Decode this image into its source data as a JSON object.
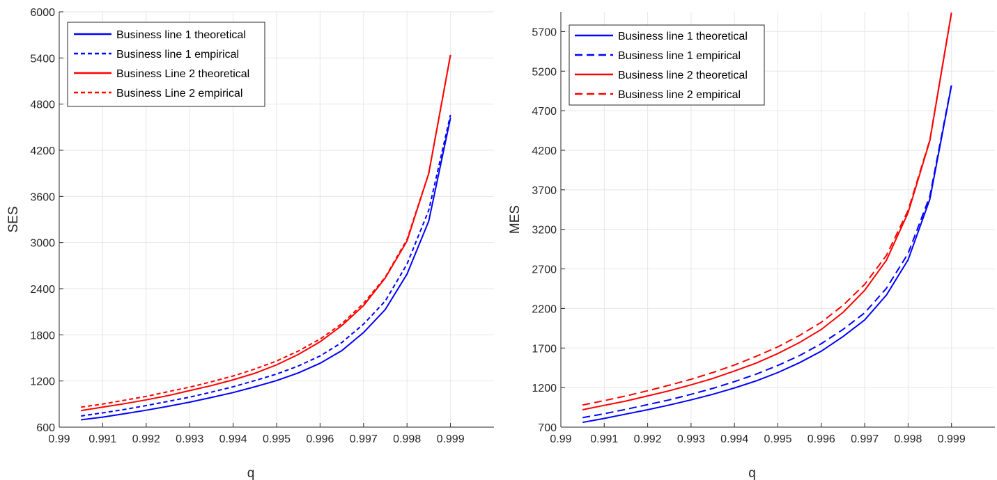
{
  "chart_data": [
    {
      "type": "line",
      "xlabel": "q",
      "ylabel": "SES",
      "xlim": [
        0.99,
        1.0
      ],
      "ylim": [
        600,
        6000
      ],
      "xticks": [
        0.99,
        0.991,
        0.992,
        0.993,
        0.994,
        0.995,
        0.996,
        0.997,
        0.998,
        0.999
      ],
      "xtick_labels": [
        "0.99",
        "0.991",
        "0.992",
        "0.993",
        "0.994",
        "0.995",
        "0.996",
        "0.997",
        "0.998",
        "0.999"
      ],
      "yticks": [
        600,
        1200,
        1800,
        2400,
        3000,
        3600,
        4200,
        4800,
        5400,
        6000
      ],
      "ytick_labels": [
        "600",
        "1200",
        "1800",
        "2400",
        "3000",
        "3600",
        "4200",
        "4800",
        "5400",
        "6000"
      ],
      "grid": true,
      "legend_position": "top-left",
      "x": [
        0.9905,
        0.991,
        0.9915,
        0.992,
        0.9925,
        0.993,
        0.9935,
        0.994,
        0.9945,
        0.995,
        0.9955,
        0.996,
        0.9965,
        0.997,
        0.9975,
        0.998,
        0.9985,
        0.999
      ],
      "series": [
        {
          "name": "Business line 1 theoretical",
          "color": "#0000ff",
          "style": "solid",
          "values": [
            695,
            730,
            775,
            820,
            870,
            925,
            985,
            1050,
            1125,
            1205,
            1305,
            1430,
            1595,
            1830,
            2130,
            2590,
            3280,
            4620
          ]
        },
        {
          "name": "Business line 1 empirical",
          "color": "#0000ff",
          "style": "dashed",
          "values": [
            745,
            785,
            830,
            880,
            935,
            990,
            1055,
            1125,
            1205,
            1290,
            1395,
            1525,
            1700,
            1940,
            2240,
            2720,
            3420,
            4660
          ]
        },
        {
          "name": "Business Line 2 theoretical",
          "color": "#ff0000",
          "style": "solid",
          "values": [
            815,
            860,
            905,
            955,
            1010,
            1075,
            1140,
            1215,
            1300,
            1410,
            1545,
            1710,
            1920,
            2180,
            2540,
            3020,
            3900,
            5440
          ]
        },
        {
          "name": "Business Line 2 empirical",
          "color": "#ff0000",
          "style": "dashed",
          "values": [
            860,
            900,
            950,
            1000,
            1060,
            1120,
            1190,
            1265,
            1355,
            1460,
            1590,
            1745,
            1945,
            2210,
            2550,
            3040,
            3900,
            5440
          ]
        }
      ]
    },
    {
      "type": "line",
      "xlabel": "q",
      "ylabel": "MES",
      "xlim": [
        0.99,
        1.0
      ],
      "ylim": [
        700,
        5950
      ],
      "xticks": [
        0.99,
        0.991,
        0.992,
        0.993,
        0.994,
        0.995,
        0.996,
        0.997,
        0.998,
        0.999
      ],
      "xtick_labels": [
        "0.99",
        "0.991",
        "0.992",
        "0.993",
        "0.994",
        "0.995",
        "0.996",
        "0.997",
        "0.998",
        "0.999"
      ],
      "yticks": [
        700,
        1200,
        1700,
        2200,
        2700,
        3200,
        3700,
        4200,
        4700,
        5200,
        5700
      ],
      "ytick_labels": [
        "700",
        "1200",
        "1700",
        "2200",
        "2700",
        "3200",
        "3700",
        "4200",
        "4700",
        "5200",
        "5700"
      ],
      "grid": true,
      "legend_position": "top-left",
      "x": [
        0.9905,
        0.991,
        0.9915,
        0.992,
        0.9925,
        0.993,
        0.9935,
        0.994,
        0.9945,
        0.995,
        0.9955,
        0.996,
        0.9965,
        0.997,
        0.9975,
        0.998,
        0.9985,
        0.999
      ],
      "series": [
        {
          "name": "Business line 1 theoretical",
          "color": "#0000ff",
          "style": "solid",
          "values": [
            760,
            810,
            865,
            920,
            980,
            1045,
            1115,
            1195,
            1285,
            1390,
            1515,
            1660,
            1845,
            2055,
            2370,
            2815,
            3580,
            5020
          ]
        },
        {
          "name": "Business line 1 empirical",
          "color": "#0000ff",
          "style": "dashed",
          "values": [
            820,
            870,
            925,
            985,
            1045,
            1115,
            1190,
            1275,
            1370,
            1480,
            1605,
            1755,
            1935,
            2145,
            2455,
            2895,
            3620,
            5030
          ]
        },
        {
          "name": "Business line 2 theoretical",
          "color": "#ff0000",
          "style": "solid",
          "values": [
            920,
            975,
            1030,
            1095,
            1160,
            1235,
            1315,
            1410,
            1510,
            1630,
            1770,
            1935,
            2150,
            2430,
            2810,
            3410,
            4320,
            5940
          ]
        },
        {
          "name": "Business line 2 empirical",
          "color": "#ff0000",
          "style": "dashed",
          "values": [
            980,
            1035,
            1095,
            1160,
            1230,
            1305,
            1390,
            1485,
            1595,
            1715,
            1860,
            2025,
            2240,
            2505,
            2870,
            3440,
            4330,
            5940
          ]
        }
      ]
    }
  ]
}
